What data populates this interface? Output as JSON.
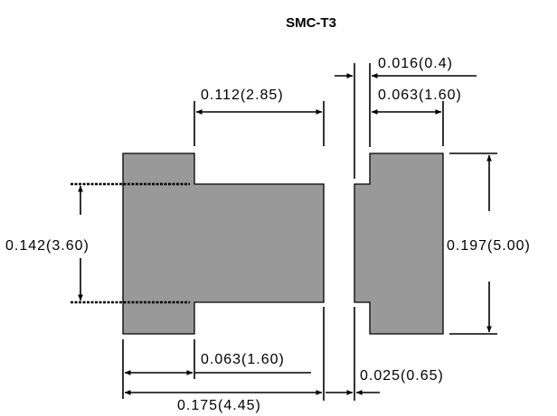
{
  "diagram": {
    "title": "SMC-T3",
    "dimensions": {
      "gap": "0.016(0.4)",
      "left_neck_length": "0.112(2.85)",
      "right_pad_width": "0.063(1.60)",
      "inner_height": "0.142(3.60)",
      "outer_height": "0.197(5.00)",
      "left_tab_width": "0.063(1.60)",
      "right_offset": "0.025(0.65)",
      "overall_left_length": "0.175(4.45)"
    }
  }
}
